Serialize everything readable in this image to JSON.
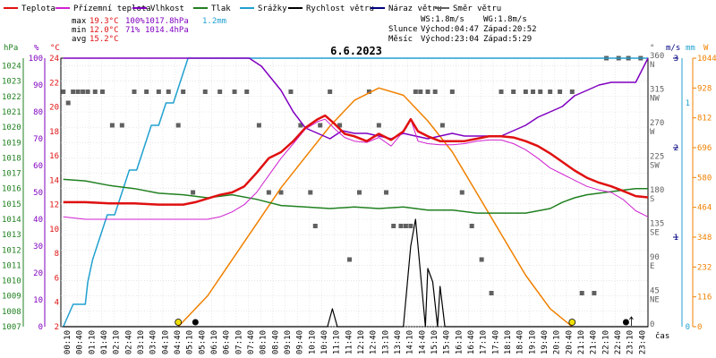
{
  "chart_data": {
    "type": "line",
    "title": "6.6.2023",
    "colors": {
      "temperature": "#e01010",
      "apparent_temperature": "#d020d0",
      "humidity": "#8000c0",
      "pressure": "#208020",
      "precipitation": "#20a0d0",
      "wind_speed": "#000000",
      "wind_gust": "#000080",
      "wind_direction": "#606060",
      "solar": "#f08000"
    },
    "legend": [
      {
        "key": "temperature",
        "label": "Teplota"
      },
      {
        "key": "apparent_temperature",
        "label": "Přízemní teplota"
      },
      {
        "key": "humidity",
        "label": "Vlhkost"
      },
      {
        "key": "pressure",
        "label": "Tlak"
      },
      {
        "key": "precipitation",
        "label": "Srážky"
      },
      {
        "key": "wind_speed",
        "label": "Rychlost větru"
      },
      {
        "key": "wind_gust",
        "label": "Náraz větru"
      },
      {
        "key": "wind_direction",
        "label": "Směr větru"
      }
    ],
    "stats": [
      {
        "label": "max",
        "temp": "19.3°C",
        "hum": "100%",
        "pres": "1017.8hPa",
        "rain": "1.2mm"
      },
      {
        "label": "min",
        "temp": "12.0°C",
        "hum": "71%",
        "pres": "1014.4hPa",
        "rain": ""
      },
      {
        "label": "avg",
        "temp": "15.2°C",
        "hum": "",
        "pres": "",
        "rain": ""
      }
    ],
    "info": {
      "ws": "WS:1.8m/s",
      "wg": "WG:1.8m/s",
      "sun_label": "Slunce",
      "sunrise": "Východ:04:47",
      "sunset": "Západ:20:52",
      "moon_label": "Měsíc",
      "moonrise": "Východ:23:04",
      "moonset": "Západ:5:29"
    },
    "axes": {
      "hpa_title": "hPa",
      "hpa_ticks": [
        "1024",
        "1023",
        "1022",
        "1021",
        "1020",
        "1019",
        "1018",
        "1017",
        "1016",
        "1015",
        "1014",
        "1013",
        "1012",
        "1011",
        "1010",
        "1009",
        "1008",
        "1007"
      ],
      "pct_title": "%",
      "pct_ticks": [
        "100",
        "90",
        "80",
        "70",
        "60",
        "50",
        "40",
        "30",
        "20",
        "10",
        "0"
      ],
      "temp_title": "°C",
      "temp_ticks": [
        "24",
        "22",
        "20",
        "18",
        "16",
        "14",
        "12",
        "10",
        "8",
        "6",
        "4",
        "2"
      ],
      "dir_title": "°",
      "dir_ticks": [
        {
          "v": "360",
          "d": "N"
        },
        {
          "v": "315",
          "d": "NW"
        },
        {
          "v": "270",
          "d": "W"
        },
        {
          "v": "225",
          "d": "SW"
        },
        {
          "v": "180",
          "d": "S"
        },
        {
          "v": "135",
          "d": "SE"
        },
        {
          "v": "90",
          "d": "E"
        },
        {
          "v": "45",
          "d": "NE"
        },
        {
          "v": "0",
          "d": ""
        }
      ],
      "ms_title": "m/s",
      "ms_ticks": [
        "3",
        "2",
        "1"
      ],
      "mm_title": "mm",
      "mm_ticks": [
        "1",
        "0"
      ],
      "w_title": "W",
      "w_ticks": [
        "1044",
        "928",
        "812",
        "696",
        "580",
        "464",
        "348",
        "232",
        "116",
        "0"
      ],
      "x_title": "čas",
      "x_ticks": [
        "00:10",
        "00:40",
        "01:10",
        "01:40",
        "02:10",
        "02:40",
        "03:10",
        "03:40",
        "04:10",
        "04:40",
        "05:10",
        "05:40",
        "06:10",
        "06:40",
        "07:10",
        "07:40",
        "08:10",
        "08:40",
        "09:10",
        "09:40",
        "10:10",
        "10:40",
        "11:10",
        "11:40",
        "12:10",
        "12:40",
        "13:10",
        "13:40",
        "14:10",
        "14:40",
        "15:10",
        "15:40",
        "16:10",
        "16:40",
        "17:10",
        "17:40",
        "18:10",
        "18:40",
        "19:10",
        "19:40",
        "20:10",
        "20:40",
        "21:10",
        "21:40",
        "22:10",
        "22:40",
        "23:10",
        "23:40"
      ]
    },
    "x_range_hours": [
      0,
      24
    ],
    "temp_ylim": [
      2,
      24
    ],
    "hum_ylim": [
      0,
      100
    ],
    "pres_ylim": [
      1007,
      1024.5
    ],
    "dir_ylim": [
      0,
      360
    ],
    "ms_ylim": [
      0,
      3
    ],
    "mm_ylim": [
      0,
      1.2
    ],
    "w_ylim": [
      0,
      1044
    ],
    "series": {
      "temperature": {
        "unit": "°C",
        "x": [
          0.1,
          1,
          2,
          3,
          4,
          5,
          5.5,
          6,
          6.5,
          7,
          7.5,
          8,
          8.5,
          9,
          9.5,
          10,
          10.5,
          10.8,
          11.2,
          11.6,
          12,
          12.5,
          13,
          13.5,
          14,
          14.3,
          14.6,
          15,
          15.5,
          16,
          16.5,
          17,
          17.5,
          18,
          18.5,
          19,
          19.5,
          20,
          20.5,
          21,
          21.5,
          22,
          22.5,
          23,
          23.5,
          24
        ],
        "y": [
          12.2,
          12.2,
          12.1,
          12.1,
          12.0,
          12.0,
          12.2,
          12.5,
          12.8,
          13.0,
          13.5,
          14.6,
          15.8,
          16.3,
          17.2,
          18.3,
          19.0,
          19.3,
          18.6,
          17.8,
          17.6,
          17.2,
          17.8,
          17.3,
          18.0,
          19.0,
          18.0,
          17.6,
          17.2,
          17.2,
          17.2,
          17.4,
          17.6,
          17.6,
          17.5,
          17.2,
          16.8,
          16.2,
          15.5,
          14.8,
          14.2,
          13.8,
          13.5,
          13.1,
          12.7,
          12.6
        ]
      },
      "apparent_temperature": {
        "unit": "°C",
        "x": [
          0.1,
          1,
          2,
          3,
          4,
          5,
          6,
          6.5,
          7,
          7.5,
          8,
          8.5,
          9,
          9.5,
          10,
          10.5,
          10.8,
          11.2,
          11.6,
          12,
          12.5,
          13,
          13.5,
          14,
          14.3,
          14.6,
          15,
          15.5,
          16,
          16.5,
          17,
          17.5,
          18,
          18.5,
          19,
          19.5,
          20,
          20.5,
          21,
          21.5,
          22,
          22.5,
          23,
          23.5,
          24
        ],
        "y": [
          11.0,
          10.8,
          10.8,
          10.8,
          10.8,
          10.8,
          10.8,
          11.0,
          11.4,
          12.0,
          13.0,
          14.4,
          15.8,
          17.0,
          18.2,
          18.8,
          19.0,
          18.2,
          17.5,
          17.2,
          17.1,
          17.5,
          16.8,
          18.0,
          19.0,
          17.2,
          17.0,
          16.9,
          16.9,
          17.0,
          17.2,
          17.3,
          17.3,
          17.0,
          16.5,
          15.8,
          15.0,
          14.5,
          14.0,
          13.5,
          13.2,
          13.0,
          12.4,
          11.5,
          11.0
        ]
      },
      "humidity": {
        "unit": "%",
        "x": [
          0.1,
          1,
          2,
          3,
          4,
          5,
          6,
          7,
          7.7,
          8.2,
          9,
          9.5,
          10,
          10.5,
          11,
          11.5,
          12,
          12.5,
          13,
          13.5,
          14,
          14.5,
          15,
          15.5,
          16,
          16.5,
          17,
          17.5,
          18,
          18.5,
          19,
          19.5,
          20,
          20.5,
          21,
          21.5,
          22,
          22.5,
          23,
          23.5,
          24
        ],
        "y": [
          100,
          100,
          100,
          100,
          100,
          100,
          100,
          100,
          100,
          97,
          88,
          80,
          74,
          72,
          70,
          73,
          72,
          72,
          71,
          70,
          72,
          71,
          70,
          71,
          72,
          71,
          71,
          71,
          71,
          73,
          75,
          78,
          80,
          82,
          86,
          88,
          90,
          91,
          91,
          91,
          100
        ]
      },
      "pressure": {
        "unit": "hPa",
        "x": [
          0.1,
          1,
          2,
          3,
          4,
          5,
          6,
          7,
          8,
          9,
          10,
          11,
          12,
          13,
          14,
          15,
          16,
          17,
          18,
          19,
          20,
          20.5,
          21,
          21.5,
          22,
          22.5,
          23,
          23.5,
          24
        ],
        "y": [
          1016.6,
          1016.5,
          1016.2,
          1016.0,
          1015.7,
          1015.6,
          1015.4,
          1015.6,
          1015.3,
          1014.9,
          1014.8,
          1014.7,
          1014.8,
          1014.7,
          1014.8,
          1014.6,
          1014.6,
          1014.4,
          1014.4,
          1014.4,
          1014.7,
          1015.1,
          1015.4,
          1015.6,
          1015.7,
          1015.8,
          1015.9,
          1016.0,
          1016.0
        ]
      },
      "precipitation": {
        "unit": "mm",
        "x": [
          0.1,
          0.5,
          1,
          1.1,
          1.3,
          1.6,
          1.9,
          2.2,
          2.5,
          2.8,
          3.1,
          3.4,
          3.7,
          4.0,
          4.3,
          4.6,
          4.9,
          5.2,
          24
        ],
        "y": [
          0,
          0.1,
          0.1,
          0.2,
          0.3,
          0.4,
          0.5,
          0.5,
          0.6,
          0.7,
          0.7,
          0.8,
          0.9,
          0.9,
          1.0,
          1.0,
          1.1,
          1.2,
          1.2
        ]
      },
      "wind_speed": {
        "unit": "m/s",
        "x": [
          0.1,
          10.9,
          11.1,
          11.3,
          14.0,
          14.3,
          14.5,
          14.7,
          14.9,
          15.0,
          15.2,
          15.4,
          15.5,
          15.7,
          15.9,
          24
        ],
        "y": [
          0,
          0,
          0.2,
          0,
          0,
          0.9,
          1.2,
          0.6,
          0,
          0.65,
          0.5,
          0,
          0.45,
          0,
          0,
          0
        ]
      },
      "solar": {
        "unit": "W",
        "x": [
          4.8,
          6,
          7,
          8,
          9,
          10,
          11,
          12,
          13,
          14,
          15,
          16,
          17,
          18,
          19,
          20,
          20.9
        ],
        "y": [
          0,
          120,
          260,
          400,
          540,
          660,
          780,
          880,
          928,
          900,
          800,
          680,
          520,
          360,
          200,
          70,
          0
        ]
      },
      "wind_direction_points": {
        "unit": "°",
        "x": [
          0.1,
          0.3,
          0.5,
          0.7,
          0.9,
          1.1,
          1.4,
          1.7,
          2.1,
          2.5,
          3.0,
          3.5,
          4.0,
          4.4,
          4.8,
          5.0,
          5.4,
          5.9,
          6.5,
          7.1,
          7.6,
          8.1,
          8.5,
          9.0,
          9.4,
          9.8,
          10.2,
          10.4,
          10.6,
          11.0,
          11.4,
          11.8,
          12.2,
          12.6,
          13.0,
          13.3,
          13.6,
          13.9,
          14.1,
          14.3,
          14.5,
          14.7,
          15.0,
          15.3,
          15.6,
          16.0,
          16.4,
          16.8,
          17.2,
          17.6,
          18.0,
          18.5,
          19.0,
          19.3,
          19.6,
          20.0,
          20.4,
          20.9,
          21.3,
          21.8,
          22.3,
          22.8,
          23.2,
          23.7
        ],
        "y": [
          315,
          300,
          315,
          315,
          315,
          315,
          315,
          315,
          270,
          270,
          315,
          315,
          315,
          315,
          270,
          315,
          180,
          315,
          315,
          315,
          315,
          270,
          180,
          180,
          315,
          270,
          180,
          135,
          270,
          315,
          270,
          90,
          180,
          315,
          270,
          180,
          135,
          135,
          135,
          135,
          315,
          315,
          315,
          315,
          270,
          315,
          180,
          135,
          90,
          45,
          315,
          315,
          315,
          315,
          315,
          315,
          315,
          315,
          45,
          45,
          360,
          360,
          360,
          360
        ]
      }
    },
    "markers": {
      "sunrise_h": 4.8,
      "moonset_h": 5.5,
      "sunset_h": 20.9,
      "moonrise_h": 23.1
    }
  }
}
